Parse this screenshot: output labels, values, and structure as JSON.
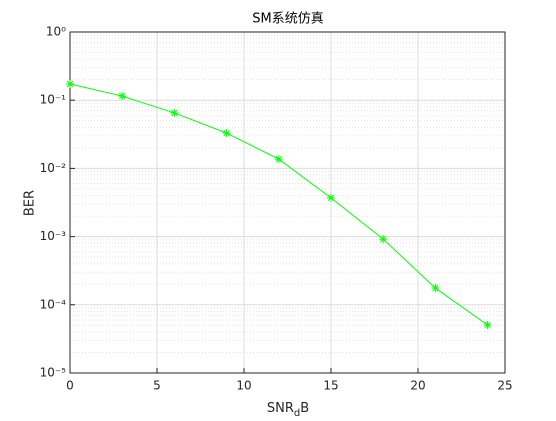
{
  "chart_data": {
    "type": "line",
    "title": "SM系统仿真",
    "xlabel": [
      "SNR",
      "d",
      "B"
    ],
    "ylabel": "BER",
    "x": [
      0,
      3,
      6,
      9,
      12,
      15,
      18,
      21,
      24
    ],
    "series": [
      {
        "name": "BER",
        "color": "#00ff00",
        "marker": "*",
        "values": [
          0.173,
          0.115,
          0.065,
          0.033,
          0.0137,
          0.0037,
          0.00092,
          0.000176,
          5.06e-05
        ]
      }
    ],
    "xlim": [
      0,
      25
    ],
    "xticks": [
      0,
      5,
      10,
      15,
      20,
      25
    ],
    "ylim": [
      1e-05,
      1
    ],
    "ylog": true,
    "yticks": [
      {
        "value": 1e-05,
        "label": "10⁻⁵"
      },
      {
        "value": 0.0001,
        "label": "10⁻⁴"
      },
      {
        "value": 0.001,
        "label": "10⁻³"
      },
      {
        "value": 0.01,
        "label": "10⁻²"
      },
      {
        "value": 0.1,
        "label": "10⁻¹"
      },
      {
        "value": 1,
        "label": "10⁰"
      }
    ],
    "grid": true,
    "minor_grid": true
  }
}
